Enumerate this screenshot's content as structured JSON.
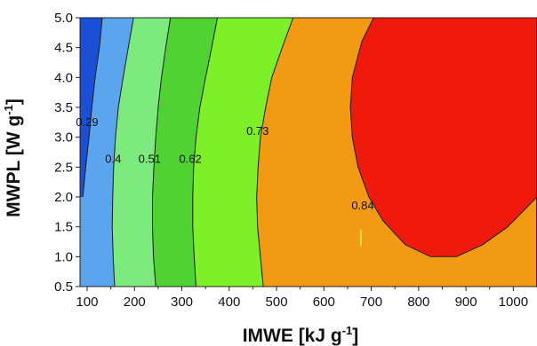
{
  "chart_data": {
    "type": "contour",
    "xlabel": "IMWE [kJ g",
    "xlabel_sup": "-1",
    "xlabel_end": "]",
    "ylabel": "MWPL [W g",
    "ylabel_sup": "-1",
    "ylabel_end": "]",
    "xlim": [
      85,
      1050
    ],
    "ylim": [
      0.5,
      5.0
    ],
    "x_ticks": [
      100,
      200,
      300,
      400,
      500,
      600,
      700,
      800,
      900,
      1000
    ],
    "x_tick_labels": [
      "100",
      "200",
      "300",
      "400",
      "500",
      "600",
      "700",
      "800",
      "900",
      "1000"
    ],
    "y_ticks": [
      0.5,
      1.0,
      1.5,
      2.0,
      2.5,
      3.0,
      3.5,
      4.0,
      4.5,
      5.0
    ],
    "y_tick_labels": [
      "0.5",
      "1.0",
      "1.5",
      "2.0",
      "2.5",
      "3.0",
      "3.5",
      "4.0",
      "4.5",
      "5.0"
    ],
    "levels": [
      0.29,
      0.4,
      0.51,
      0.62,
      0.73,
      0.84
    ],
    "band_colors": [
      "#1a4fd6",
      "#5aa5ee",
      "#7dea7d",
      "#4fd232",
      "#7ef028",
      "#f29a12",
      "#ef1a0c"
    ],
    "contours": [
      {
        "level": 0.29,
        "label": "0.29",
        "label_at": [
          100,
          3.25
        ],
        "points": [
          [
            132,
            5.0
          ],
          [
            126,
            4.5
          ],
          [
            117,
            4.0
          ],
          [
            110,
            3.5
          ],
          [
            104,
            3.0
          ],
          [
            97,
            2.5
          ],
          [
            91,
            2.0
          ]
        ]
      },
      {
        "level": 0.4,
        "label": "0.4",
        "label_at": [
          155,
          2.63
        ],
        "points": [
          [
            198,
            5.0
          ],
          [
            187,
            4.5
          ],
          [
            176,
            4.0
          ],
          [
            166,
            3.5
          ],
          [
            160,
            3.0
          ],
          [
            156,
            2.5
          ],
          [
            154,
            2.0
          ],
          [
            153,
            1.5
          ],
          [
            155,
            1.0
          ],
          [
            158,
            0.5
          ]
        ]
      },
      {
        "level": 0.51,
        "label": "0.51",
        "label_at": [
          232,
          2.63
        ],
        "points": [
          [
            276,
            5.0
          ],
          [
            266,
            4.5
          ],
          [
            257,
            4.0
          ],
          [
            250,
            3.5
          ],
          [
            245,
            3.0
          ],
          [
            241,
            2.5
          ],
          [
            238,
            2.0
          ],
          [
            238,
            1.5
          ],
          [
            240,
            1.0
          ],
          [
            245,
            0.5
          ]
        ]
      },
      {
        "level": 0.62,
        "label": "0.62",
        "label_at": [
          318,
          2.63
        ],
        "points": [
          [
            375,
            5.0
          ],
          [
            363,
            4.5
          ],
          [
            350,
            4.0
          ],
          [
            338,
            3.5
          ],
          [
            330,
            3.0
          ],
          [
            325,
            2.5
          ],
          [
            323,
            2.0
          ],
          [
            323,
            1.5
          ],
          [
            326,
            1.0
          ],
          [
            330,
            0.5
          ]
        ]
      },
      {
        "level": 0.73,
        "label": "0.73",
        "label_at": [
          460,
          3.1
        ],
        "points": [
          [
            535,
            5.0
          ],
          [
            512,
            4.5
          ],
          [
            490,
            4.0
          ],
          [
            477,
            3.5
          ],
          [
            466,
            3.0
          ],
          [
            461,
            2.5
          ],
          [
            458,
            2.0
          ],
          [
            460,
            1.5
          ],
          [
            466,
            1.0
          ],
          [
            472,
            0.5
          ]
        ]
      },
      {
        "level": 0.84,
        "label": "0.84",
        "label_at": [
          682,
          1.85
        ],
        "points": [
          [
            705,
            5.0
          ],
          [
            680,
            4.6
          ],
          [
            660,
            4.0
          ],
          [
            656,
            3.5
          ],
          [
            660,
            3.0
          ],
          [
            672,
            2.5
          ],
          [
            695,
            2.0
          ],
          [
            725,
            1.6
          ],
          [
            772,
            1.2
          ],
          [
            825,
            1.0
          ],
          [
            880,
            1.0
          ],
          [
            935,
            1.2
          ],
          [
            988,
            1.5
          ],
          [
            1050,
            2.0
          ]
        ]
      }
    ]
  }
}
